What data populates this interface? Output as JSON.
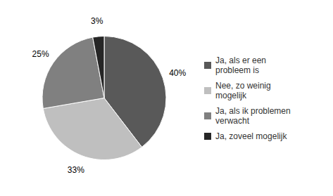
{
  "chart_data": {
    "type": "pie",
    "categories": [
      "Ja, als er een\nprobleem is",
      "Nee, zo weinig\nmogelijk",
      "Ja, als ik problemen\nverwacht",
      "Ja, zoveel mogelijk"
    ],
    "values": [
      40,
      33,
      25,
      3
    ],
    "value_labels": [
      "40%",
      "33%",
      "25%",
      "3%"
    ],
    "colors": [
      "#595959",
      "#bfbfbf",
      "#808080",
      "#262626"
    ],
    "data_labels": true,
    "legend": "right"
  }
}
